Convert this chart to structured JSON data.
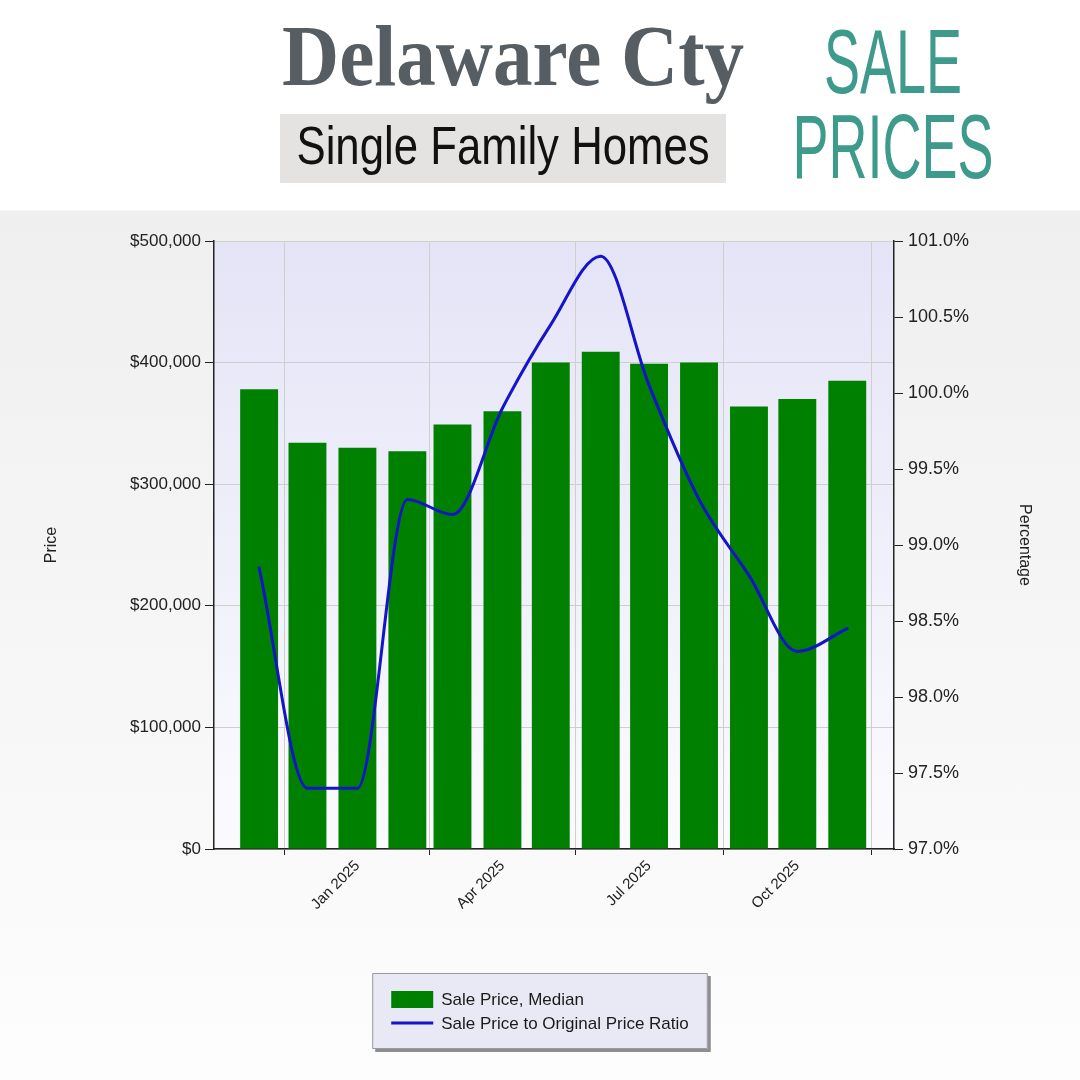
{
  "chart_data": {
    "type": "bar",
    "title": "Delaware Cty",
    "subtitle": "Single Family Homes",
    "annotations": [
      "SALE PRICES"
    ],
    "x": [
      "2024-11",
      "2024-12",
      "2025-01",
      "2025-02",
      "2025-03",
      "2025-04",
      "2025-05",
      "2025-06",
      "2025-07",
      "2025-08",
      "2025-09",
      "2025-10",
      "2025-11"
    ],
    "xlim": [
      "2024-10-04",
      "2025-11-30"
    ],
    "xticks": [
      {
        "value": "2025-01",
        "label": "Jan 2025"
      },
      {
        "value": "2025-04",
        "label": "Apr 2025"
      },
      {
        "value": "2025-07",
        "label": "Jul 2025"
      },
      {
        "value": "2025-10",
        "label": "Oct 2025"
      }
    ],
    "ylabel": "Price",
    "y2label": "Percentage",
    "ylim": [
      0,
      500000
    ],
    "yticks": [
      {
        "value": 0,
        "label": "$0"
      },
      {
        "value": 100000,
        "label": "$100,000"
      },
      {
        "value": 200000,
        "label": "$200,000"
      },
      {
        "value": 300000,
        "label": "$300,000"
      },
      {
        "value": 400000,
        "label": "$400,000"
      },
      {
        "value": 500000,
        "label": "$500,000"
      }
    ],
    "y2lim": [
      97,
      101
    ],
    "y2ticks": [
      {
        "value": 97,
        "label": "97.0%"
      },
      {
        "value": 97.5,
        "label": "97.5%"
      },
      {
        "value": 98,
        "label": "98.0%"
      },
      {
        "value": 98.5,
        "label": "98.5%"
      },
      {
        "value": 99,
        "label": "99.0%"
      },
      {
        "value": 99.5,
        "label": "99.5%"
      },
      {
        "value": 100,
        "label": "100.0%"
      },
      {
        "value": 100.5,
        "label": "100.5%"
      },
      {
        "value": 101,
        "label": "101.0%"
      }
    ],
    "series": [
      {
        "name": "Sale Price, Median",
        "color": "#008000",
        "values": [
          378000,
          334000,
          330000,
          327000,
          349000,
          360000,
          400000,
          409000,
          399000,
          400000,
          364000,
          370000,
          385000
        ]
      },
      {
        "name": "Sale Price to Original Price Ratio",
        "type": "line",
        "color": "#1414c8",
        "axis": "y2",
        "values": [
          98.85,
          97.4,
          97.4,
          99.3,
          99.2,
          99.9,
          100.45,
          100.9,
          100.05,
          99.3,
          98.8,
          98.3,
          98.45
        ]
      }
    ],
    "grid": true,
    "legend": "bottom"
  }
}
